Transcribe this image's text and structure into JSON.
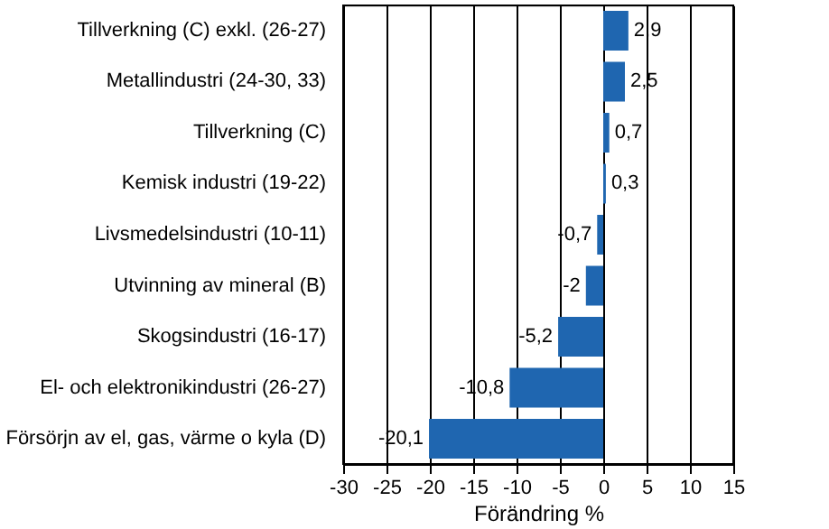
{
  "chart_data": {
    "type": "bar",
    "orientation": "horizontal",
    "xlabel": "Förändring %",
    "categories": [
      "Tillverkning (C) exkl. (26-27)",
      "Metallindustri (24-30, 33)",
      "Tillverkning (C)",
      "Kemisk industri (19-22)",
      "Livsmedelsindustri (10-11)",
      "Utvinning av mineral (B)",
      "Skogsindustri (16-17)",
      "El- och elektronikindustri (26-27)",
      "Försörjn av el, gas, värme o kyla (D)"
    ],
    "values": [
      2.9,
      2.5,
      0.7,
      0.3,
      -0.7,
      -2,
      -5.2,
      -10.8,
      -20.1
    ],
    "value_labels": [
      "2,9",
      "2,5",
      "0,7",
      "0,3",
      "-0,7",
      "-2",
      "-5,2",
      "-10,8",
      "-20,1"
    ],
    "color": "#1f66b0",
    "xlim": [
      -30,
      15
    ],
    "xticks": [
      -30,
      -25,
      -20,
      -15,
      -10,
      -5,
      0,
      5,
      10,
      15
    ],
    "grid": "x"
  }
}
